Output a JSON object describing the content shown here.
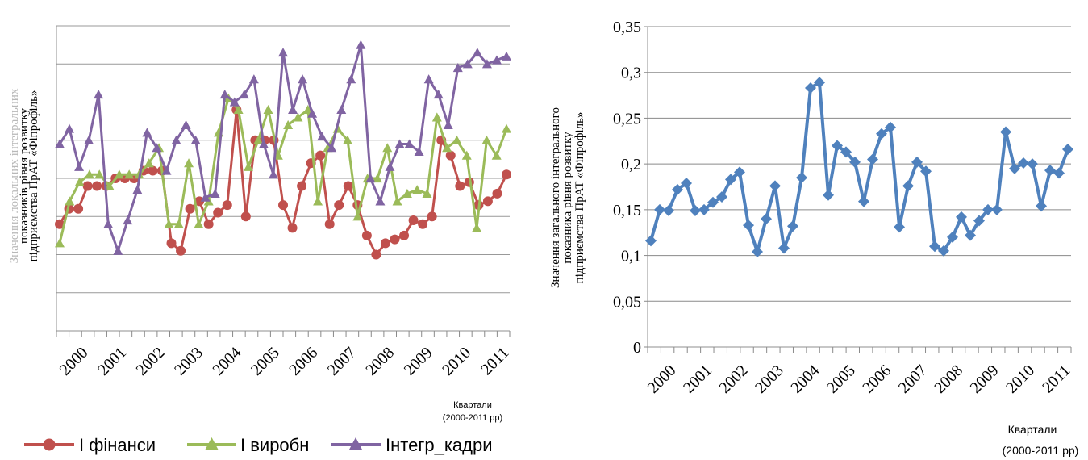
{
  "chart_data": [
    {
      "type": "line",
      "ylabel": [
        "Значення локальних інтегральних",
        "показників рівня розвитку",
        "підприємства ПрАТ «Фіпрофіль»"
      ],
      "xlabel": [
        "Квартали",
        "(2000-2011 рр)"
      ],
      "x_tick_labels": [
        "2000",
        "2001",
        "2002",
        "2003",
        "2004",
        "2005",
        "2006",
        "2007",
        "2008",
        "2009",
        "2010",
        "2011"
      ],
      "y_tick_labels": [],
      "ylim": [
        0,
        0.4
      ],
      "grid": true,
      "legend_position": "bottom",
      "series": [
        {
          "name": "І фінанси",
          "color": "#c0504d",
          "marker": "circle",
          "values": [
            0.14,
            0.16,
            0.16,
            0.19,
            0.19,
            0.19,
            0.2,
            0.2,
            0.2,
            0.21,
            0.21,
            0.21,
            0.115,
            0.105,
            0.16,
            0.17,
            0.14,
            0.155,
            0.165,
            0.29,
            0.15,
            0.25,
            0.25,
            0.25,
            0.165,
            0.135,
            0.19,
            0.22,
            0.23,
            0.14,
            0.165,
            0.19,
            0.165,
            0.125,
            0.1,
            0.115,
            0.12,
            0.125,
            0.145,
            0.14,
            0.15,
            0.25,
            0.23,
            0.19,
            0.195,
            0.165,
            0.17,
            0.18,
            0.205
          ]
        },
        {
          "name": "І виробн",
          "color": "#9bbb59",
          "marker": "triangle",
          "values": [
            0.115,
            0.17,
            0.195,
            0.205,
            0.205,
            0.19,
            0.205,
            0.205,
            0.205,
            0.22,
            0.24,
            0.14,
            0.14,
            0.22,
            0.14,
            0.17,
            0.26,
            0.305,
            0.29,
            0.215,
            0.25,
            0.29,
            0.23,
            0.27,
            0.28,
            0.29,
            0.17,
            0.24,
            0.265,
            0.25,
            0.15,
            0.2,
            0.2,
            0.24,
            0.17,
            0.18,
            0.185,
            0.18,
            0.28,
            0.24,
            0.25,
            0.23,
            0.135,
            0.25,
            0.23,
            0.265
          ]
        },
        {
          "name": "Інтегр_кадри",
          "color": "#8064a2",
          "marker": "triangle",
          "values": [
            0.245,
            0.265,
            0.215,
            0.25,
            0.31,
            0.14,
            0.105,
            0.145,
            0.185,
            0.26,
            0.24,
            0.21,
            0.25,
            0.27,
            0.25,
            0.175,
            0.18,
            0.31,
            0.3,
            0.31,
            0.33,
            0.245,
            0.205,
            0.365,
            0.29,
            0.33,
            0.285,
            0.255,
            0.24,
            0.29,
            0.33,
            0.375,
            0.2,
            0.17,
            0.215,
            0.245,
            0.245,
            0.235,
            0.33,
            0.31,
            0.27,
            0.345,
            0.35,
            0.365,
            0.35,
            0.355,
            0.36
          ]
        }
      ]
    },
    {
      "type": "line",
      "ylabel": [
        "Значення загального інтегрального",
        "показника рівня розвитку",
        "підприємства ПрАТ «Фіпрофіль»"
      ],
      "xlabel": [
        "Квартали",
        "(2000-2011 рр)"
      ],
      "x_tick_labels": [
        "2000",
        "2001",
        "2002",
        "2003",
        "2004",
        "2005",
        "2006",
        "2007",
        "2008",
        "2009",
        "2010",
        "2011"
      ],
      "y_tick_labels": [
        "0",
        "0,05",
        "0,1",
        "0,15",
        "0,2",
        "0,25",
        "0,3",
        "0,35"
      ],
      "ylim": [
        0,
        0.35
      ],
      "grid": true,
      "series": [
        {
          "color": "#4f81bd",
          "marker": "diamond",
          "values": [
            0.116,
            0.15,
            0.149,
            0.172,
            0.179,
            0.149,
            0.15,
            0.158,
            0.164,
            0.183,
            0.191,
            0.133,
            0.104,
            0.14,
            0.176,
            0.108,
            0.132,
            0.185,
            0.283,
            0.289,
            0.166,
            0.22,
            0.213,
            0.202,
            0.159,
            0.205,
            0.233,
            0.24,
            0.131,
            0.176,
            0.202,
            0.192,
            0.11,
            0.105,
            0.12,
            0.142,
            0.122,
            0.138,
            0.15,
            0.15,
            0.235,
            0.195,
            0.201,
            0.2,
            0.154,
            0.193,
            0.19,
            0.216
          ]
        }
      ]
    }
  ]
}
